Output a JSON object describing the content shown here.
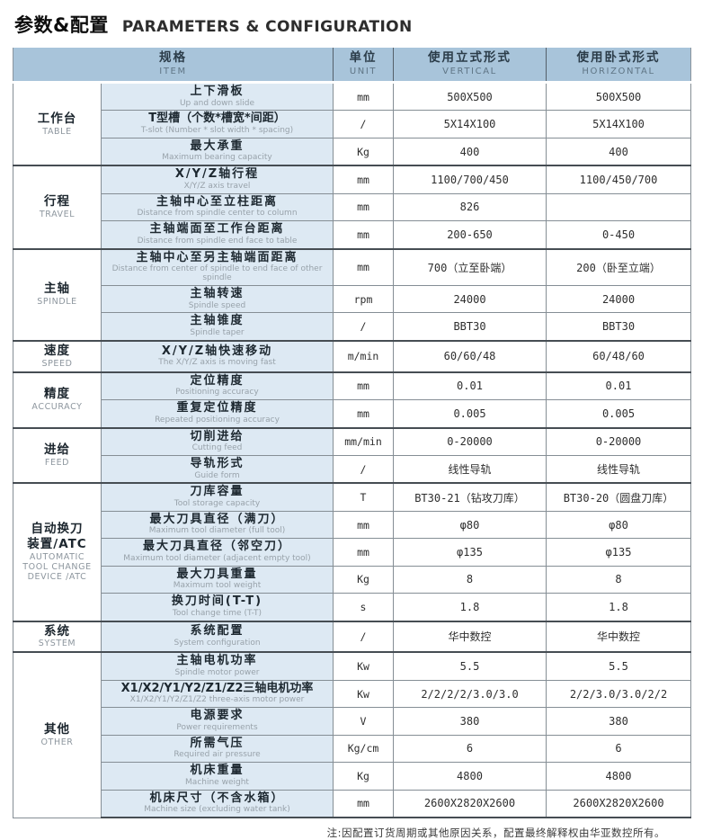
{
  "title": {
    "zh": "参数&配置",
    "en": "PARAMETERS & CONFIGURATION"
  },
  "colors": {
    "header_bg": "#a8c4da",
    "item_cell_bg": "#dde9f3"
  },
  "header": {
    "item": {
      "zh": "规格",
      "en": "ITEM"
    },
    "unit": {
      "zh": "单位",
      "en": "UNIT"
    },
    "vertical": {
      "zh": "使用立式形式",
      "en": "VERTICAL"
    },
    "horizontal": {
      "zh": "使用卧式形式",
      "en": "HORIZONTAL"
    }
  },
  "sections": [
    {
      "category": {
        "zh": "工作台",
        "en": "TABLE"
      },
      "rows": [
        {
          "zh": "上下滑板",
          "en": "Up and down slide",
          "unit": "mm",
          "vertical": "500X500",
          "horizontal": "500X500"
        },
        {
          "zh": "T型槽（个数*槽宽*间距）",
          "en": "T-slot (Number * slot width * spacing)",
          "unit": "/",
          "vertical": "5X14X100",
          "horizontal": "5X14X100"
        },
        {
          "zh": "最大承重",
          "en": "Maximum bearing capacity",
          "unit": "Kg",
          "vertical": "400",
          "horizontal": "400"
        }
      ]
    },
    {
      "category": {
        "zh": "行程",
        "en": "TRAVEL"
      },
      "rows": [
        {
          "zh": "X/Y/Z轴行程",
          "en": "X/Y/Z axis travel",
          "unit": "mm",
          "vertical": "1100/700/450",
          "horizontal": "1100/450/700"
        },
        {
          "zh": "主轴中心至立柱距离",
          "en": "Distance from spindle center to column",
          "unit": "mm",
          "vertical": "826",
          "horizontal": ""
        },
        {
          "zh": "主轴端面至工作台距离",
          "en": "Distance from spindle end face to table",
          "unit": "mm",
          "vertical": "200-650",
          "horizontal": "0-450"
        }
      ]
    },
    {
      "category": {
        "zh": "主轴",
        "en": "SPINDLE"
      },
      "rows": [
        {
          "zh": "主轴中心至另主轴端面距离",
          "en": "Distance from center of spindle to end face of other spindle",
          "unit": "mm",
          "vertical": "700（立至卧端）",
          "horizontal": "200（卧至立端）"
        },
        {
          "zh": "主轴转速",
          "en": "Spindle speed",
          "unit": "rpm",
          "vertical": "24000",
          "horizontal": "24000"
        },
        {
          "zh": "主轴锥度",
          "en": "Spindle taper",
          "unit": "/",
          "vertical": "BBT30",
          "horizontal": "BBT30"
        }
      ]
    },
    {
      "category": {
        "zh": "速度",
        "en": "SPEED"
      },
      "rows": [
        {
          "zh": "X/Y/Z轴快速移动",
          "en": "The X/Y/Z axis is moving fast",
          "unit": "m/min",
          "vertical": "60/60/48",
          "horizontal": "60/48/60"
        }
      ]
    },
    {
      "category": {
        "zh": "精度",
        "en": "ACCURACY"
      },
      "rows": [
        {
          "zh": "定位精度",
          "en": "Positioning accuracy",
          "unit": "mm",
          "vertical": "0.01",
          "horizontal": "0.01"
        },
        {
          "zh": "重复定位精度",
          "en": "Repeated positioning accuracy",
          "unit": "mm",
          "vertical": "0.005",
          "horizontal": "0.005"
        }
      ]
    },
    {
      "category": {
        "zh": "进给",
        "en": "FEED"
      },
      "rows": [
        {
          "zh": "切削进给",
          "en": "Cutting feed",
          "unit": "mm/min",
          "vertical": "0-20000",
          "horizontal": "0-20000"
        },
        {
          "zh": "导轨形式",
          "en": "Guide form",
          "unit": "/",
          "vertical": "线性导轨",
          "horizontal": "线性导轨"
        }
      ]
    },
    {
      "category": {
        "zh": "自动换刀\n装置/ATC",
        "en": "AUTOMATIC TOOL CHANGE DEVICE /ATC"
      },
      "rows": [
        {
          "zh": "刀库容量",
          "en": "Tool storage capacity",
          "unit": "T",
          "vertical": "BT30-21（钻攻刀库）",
          "horizontal": "BT30-20（圆盘刀库）"
        },
        {
          "zh": "最大刀具直径（满刀）",
          "en": "Maximum tool diameter (full tool)",
          "unit": "mm",
          "vertical": "φ80",
          "horizontal": "φ80"
        },
        {
          "zh": "最大刀具直径（邻空刀）",
          "en": "Maximum tool diameter (adjacent empty tool)",
          "unit": "mm",
          "vertical": "φ135",
          "horizontal": "φ135"
        },
        {
          "zh": "最大刀具重量",
          "en": "Maximum tool weight",
          "unit": "Kg",
          "vertical": "8",
          "horizontal": "8"
        },
        {
          "zh": "换刀时间(T-T)",
          "en": "Tool change time (T-T)",
          "unit": "s",
          "vertical": "1.8",
          "horizontal": "1.8"
        }
      ]
    },
    {
      "category": {
        "zh": "系统",
        "en": "SYSTEM"
      },
      "rows": [
        {
          "zh": "系统配置",
          "en": "System configuration",
          "unit": "/",
          "vertical": "华中数控",
          "horizontal": "华中数控"
        }
      ]
    },
    {
      "category": {
        "zh": "其他",
        "en": "OTHER"
      },
      "rows": [
        {
          "zh": "主轴电机功率",
          "en": "Spindle motor power",
          "unit": "Kw",
          "vertical": "5.5",
          "horizontal": "5.5"
        },
        {
          "zh": "X1/X2/Y1/Y2/Z1/Z2三轴电机功率",
          "en": "X1/X2/Y1/Y2/Z1/Z2 three-axis motor power",
          "unit": "Kw",
          "vertical": "2/2/2/2/3.0/3.0",
          "horizontal": "2/2/3.0/3.0/2/2"
        },
        {
          "zh": "电源要求",
          "en": "Power requirements",
          "unit": "V",
          "vertical": "380",
          "horizontal": "380"
        },
        {
          "zh": "所需气压",
          "en": "Required air pressure",
          "unit": "Kg/cm",
          "vertical": "6",
          "horizontal": "6"
        },
        {
          "zh": "机床重量",
          "en": "Machine weight",
          "unit": "Kg",
          "vertical": "4800",
          "horizontal": "4800"
        },
        {
          "zh": "机床尺寸（不含水箱）",
          "en": "Machine size (excluding water tank)",
          "unit": "mm",
          "vertical": "2600X2820X2600",
          "horizontal": "2600X2820X2600"
        }
      ]
    }
  ],
  "footer_note": "注:因配置订货周期或其他原因关系，配置最终解释权由华亚数控所有。"
}
